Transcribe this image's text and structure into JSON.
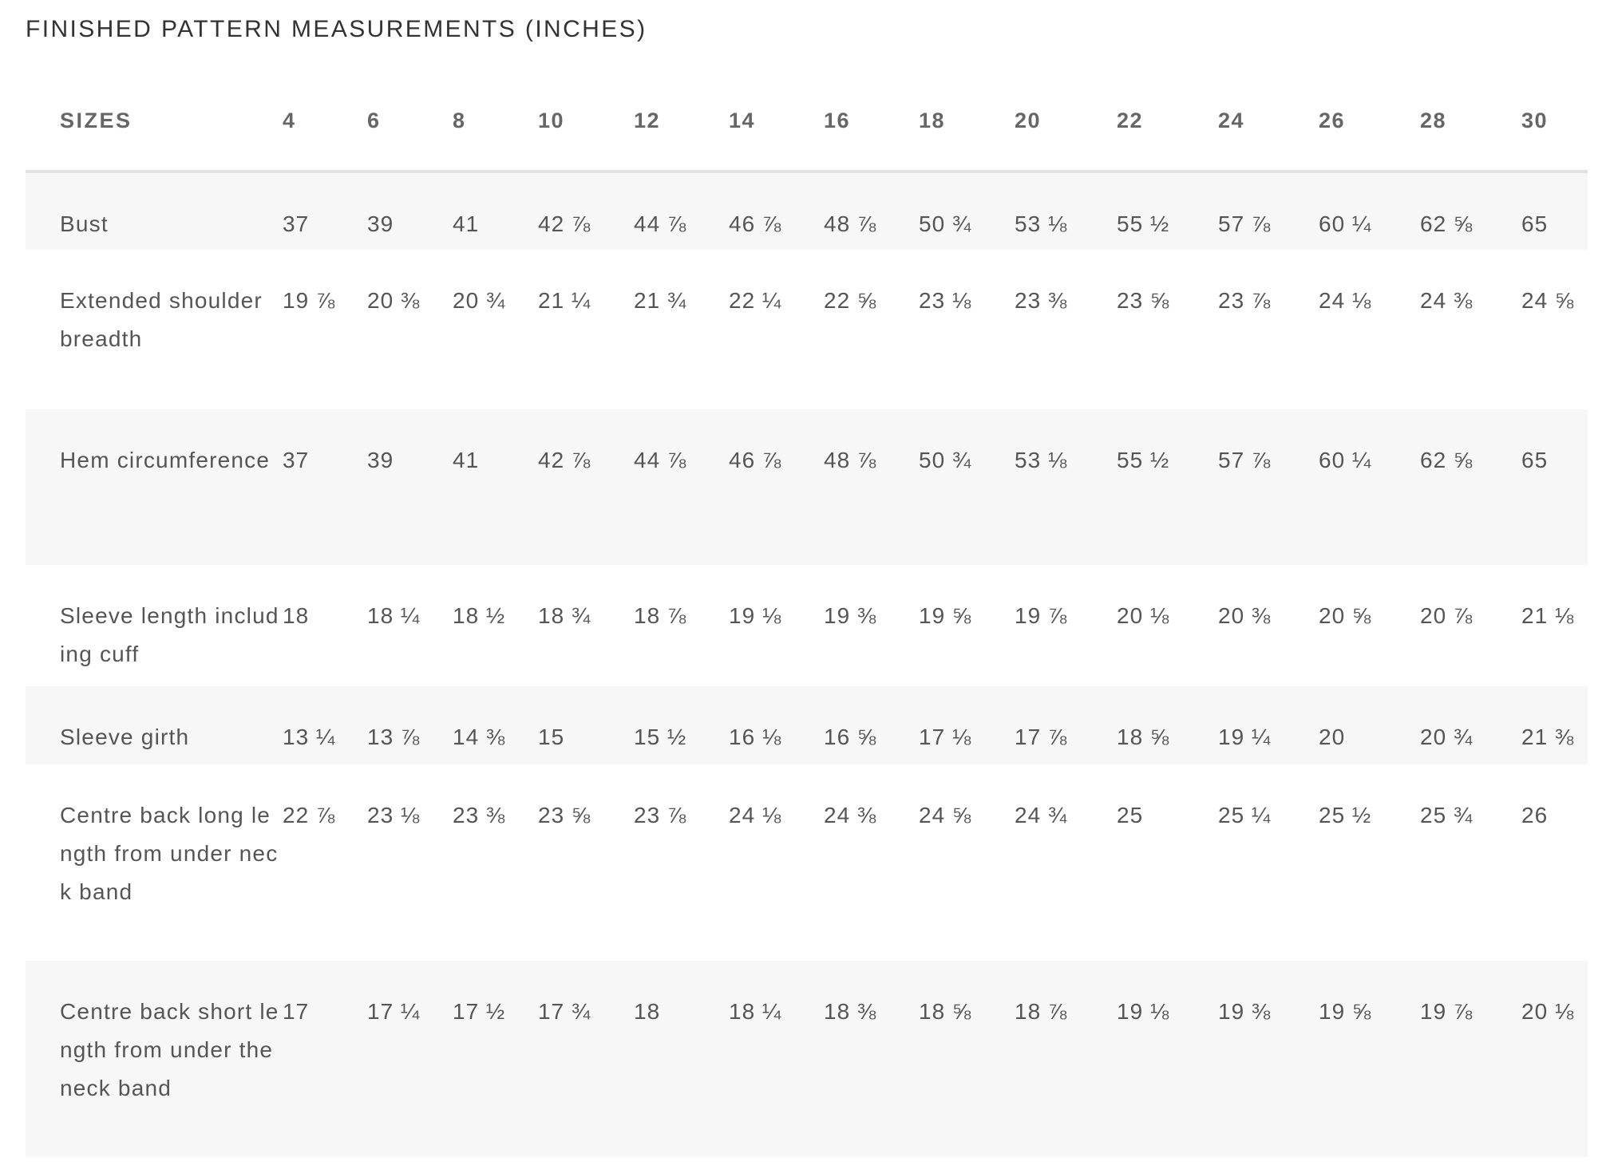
{
  "title": "FINISHED PATTERN MEASUREMENTS (INCHES)",
  "table": {
    "header": [
      "SIZES",
      "4",
      "6",
      "8",
      "10",
      "12",
      "14",
      "16",
      "18",
      "20",
      "22",
      "24",
      "26",
      "28",
      "30"
    ],
    "rows": [
      {
        "label": "Bust",
        "values": [
          "37",
          "39",
          "41",
          "42 ⅞",
          "44 ⅞",
          "46 ⅞",
          "48 ⅞",
          "50 ¾",
          "53 ⅛",
          "55 ½",
          "57 ⅞",
          "60 ¼",
          "62 ⅝",
          "65"
        ]
      },
      {
        "label": "Extended shoulder breadth",
        "values": [
          "19 ⅞",
          "20 ⅜",
          "20 ¾",
          "21 ¼",
          "21 ¾",
          "22 ¼",
          "22 ⅝",
          "23 ⅛",
          "23 ⅜",
          "23 ⅝",
          "23 ⅞",
          "24 ⅛",
          "24 ⅜",
          "24 ⅝"
        ]
      },
      {
        "label": "Hem circumference",
        "values": [
          "37",
          "39",
          "41",
          "42 ⅞",
          "44 ⅞",
          "46 ⅞",
          "48 ⅞",
          "50 ¾",
          "53 ⅛",
          "55 ½",
          "57 ⅞",
          "60 ¼",
          "62 ⅝",
          "65"
        ]
      },
      {
        "label": "Sleeve length including cuff",
        "values": [
          "18",
          "18 ¼",
          "18 ½",
          "18 ¾",
          "18 ⅞",
          "19 ⅛",
          "19 ⅜",
          "19 ⅝",
          "19 ⅞",
          "20 ⅛",
          "20 ⅜",
          "20 ⅝",
          "20 ⅞",
          "21 ⅛"
        ]
      },
      {
        "label": "Sleeve girth",
        "values": [
          "13 ¼",
          "13 ⅞",
          "14 ⅜",
          "15",
          "15 ½",
          "16 ⅛",
          "16 ⅝",
          "17 ⅛",
          "17 ⅞",
          "18 ⅝",
          "19 ¼",
          "20",
          "20 ¾",
          "21 ⅜"
        ]
      },
      {
        "label": "Centre back long length from under neck band",
        "values": [
          "22 ⅞",
          "23 ⅛",
          "23 ⅜",
          "23 ⅝",
          "23 ⅞",
          "24 ⅛",
          "24 ⅜",
          "24 ⅝",
          "24 ¾",
          "25",
          "25 ¼",
          "25 ½",
          "25 ¾",
          "26"
        ]
      },
      {
        "label": "Centre back short length from under the neck band",
        "values": [
          "17",
          "17 ¼",
          "17 ½",
          "17 ¾",
          "18",
          "18 ¼",
          "18 ⅜",
          "18 ⅝",
          "18 ⅞",
          "19 ⅛",
          "19 ⅜",
          "19 ⅝",
          "19 ⅞",
          "20 ⅛"
        ]
      }
    ]
  },
  "colors": {
    "stripe": "#f7f7f7",
    "text": "#555555",
    "header_rule": "#e2e2e2"
  }
}
